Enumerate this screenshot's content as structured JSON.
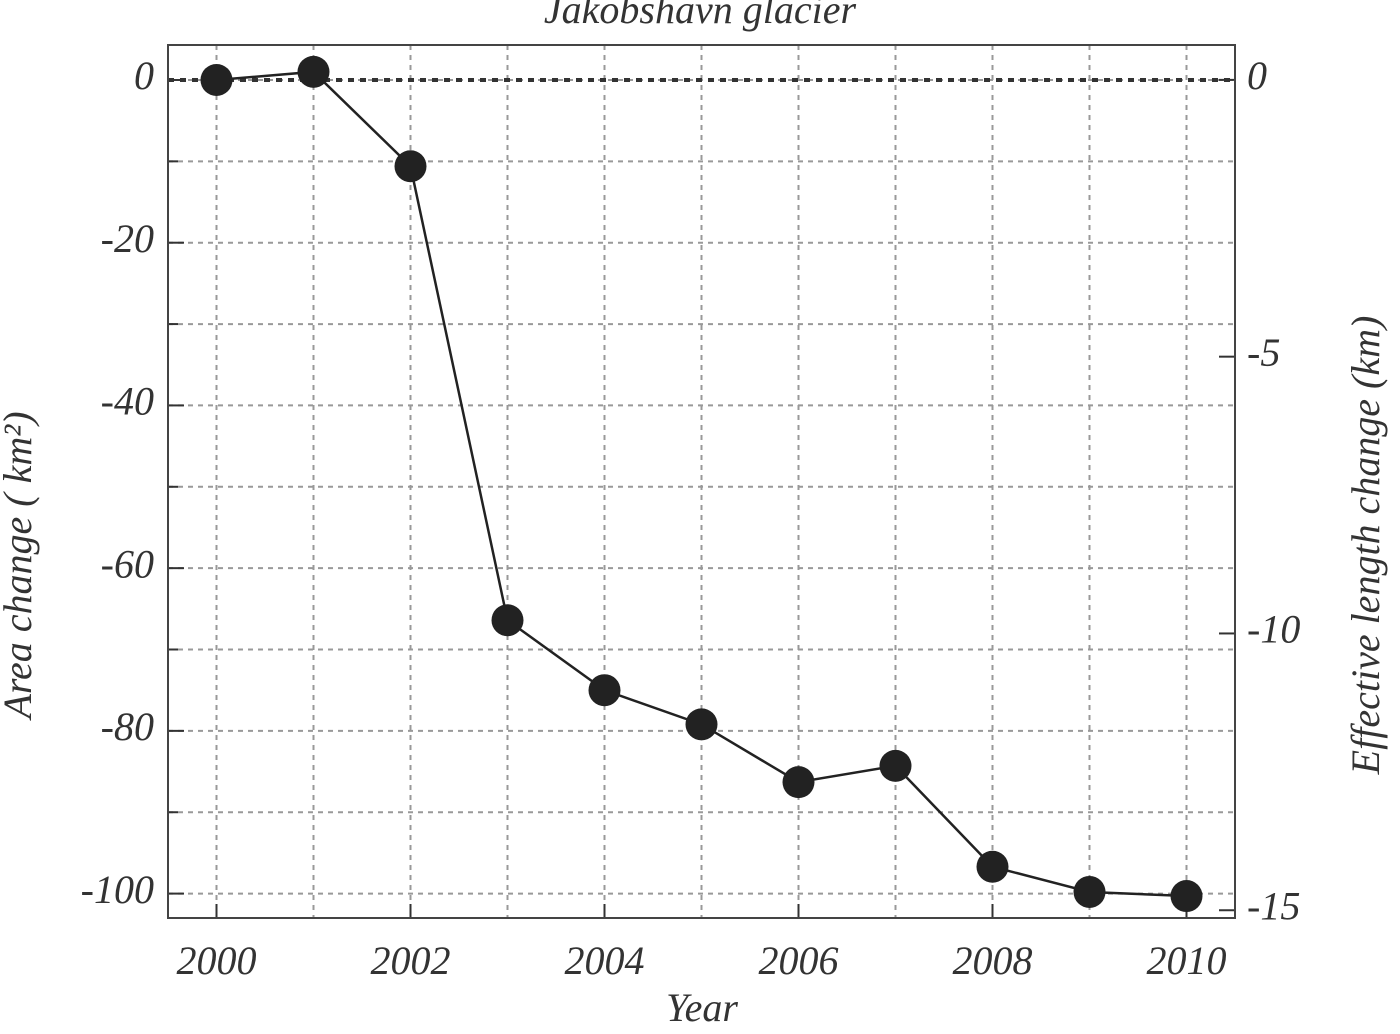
{
  "chart_data": {
    "type": "line",
    "title": "Jakobshavn glacier",
    "xlabel": "Year",
    "ylabel": "Area change ( km²)",
    "y2label": "Effective length change (km)",
    "x": [
      2000,
      2001,
      2002,
      2003,
      2004,
      2005,
      2006,
      2007,
      2008,
      2009,
      2010
    ],
    "series": [
      {
        "color": "#222222",
        "values": [
          0,
          1,
          -10.6,
          -66.4,
          -75,
          -79.2,
          -86.3,
          -84.3,
          -96.7,
          -99.8,
          -100.3
        ]
      }
    ],
    "xlim": [
      1999.5,
      2010.5
    ],
    "xticks": [
      2000,
      2002,
      2004,
      2006,
      2008,
      2010
    ],
    "xminor_ticks": [
      2001,
      2003,
      2005,
      2007,
      2009
    ],
    "ylim": [
      -103,
      4.3
    ],
    "yticks": [
      0,
      -20,
      -40,
      -60,
      -80,
      -100
    ],
    "yminor_ticks": [
      -10,
      -30,
      -50,
      -70,
      -90
    ],
    "y2lim": [
      -15.14,
      0.63
    ],
    "y2ticks": [
      0,
      -5,
      -10,
      -15
    ],
    "grid": true
  }
}
